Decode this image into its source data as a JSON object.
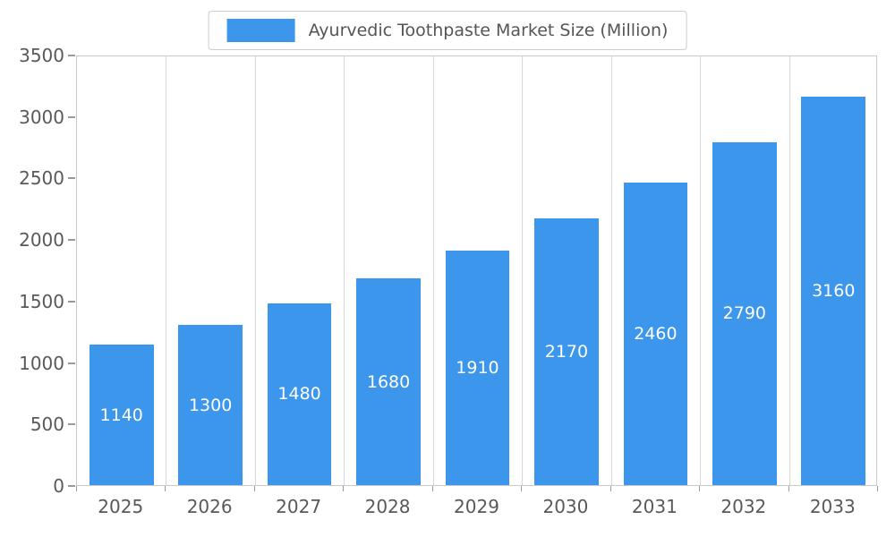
{
  "chart_data": {
    "type": "bar",
    "title": "Ayurvedic Toothpaste Market Size (Million)",
    "categories": [
      "2025",
      "2026",
      "2027",
      "2028",
      "2029",
      "2030",
      "2031",
      "2032",
      "2033"
    ],
    "values": [
      1140,
      1300,
      1480,
      1680,
      1910,
      2170,
      2460,
      2790,
      3160
    ],
    "ylim": [
      0,
      3500
    ],
    "yticks": [
      0,
      500,
      1000,
      1500,
      2000,
      2500,
      3000,
      3500
    ],
    "xlabel": "",
    "ylabel": "",
    "legend_position": "top",
    "grid": "vertical",
    "bar_color": "#3C96EC",
    "value_label_color": "#ffffff",
    "axis_text_color": "#58595b",
    "grid_color": "#d8d8d8"
  }
}
